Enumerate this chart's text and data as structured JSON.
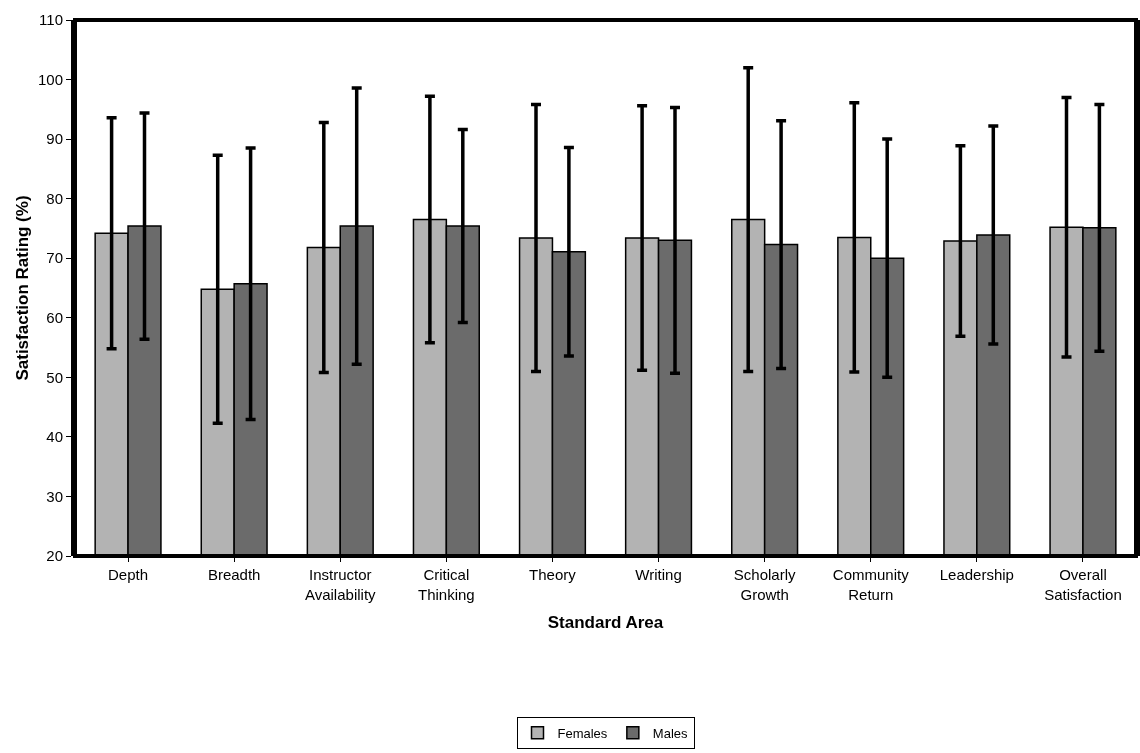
{
  "chart_data": {
    "type": "bar",
    "xlabel": "Standard Area",
    "ylabel": "Satisfaction Rating (%)",
    "categories": [
      "Depth",
      "Breadth",
      "Instructor Availability",
      "Critical Thinking",
      "Theory",
      "Writing",
      "Scholarly Growth",
      "Community Return",
      "Leadership",
      "Overall Satisfaction"
    ],
    "series": [
      {
        "name": "Females",
        "color": "#b3b3b3",
        "values": [
          74.2,
          64.8,
          71.8,
          76.5,
          73.4,
          73.4,
          76.5,
          73.5,
          72.9,
          75.2
        ],
        "errors": [
          19.4,
          22.5,
          21,
          20.7,
          22.4,
          22.2,
          25.5,
          22.6,
          16,
          21.8
        ]
      },
      {
        "name": "Males",
        "color": "#6b6b6b",
        "values": [
          75.4,
          65.7,
          75.4,
          75.4,
          71.1,
          73,
          72.3,
          70,
          73.9,
          75.1
        ],
        "errors": [
          19,
          22.8,
          23.2,
          16.2,
          17.5,
          22.3,
          20.8,
          20,
          18.3,
          20.7
        ]
      }
    ],
    "ylim": [
      20,
      110
    ],
    "yticks": [
      20,
      30,
      40,
      50,
      60,
      70,
      80,
      90,
      100,
      110
    ],
    "grid": false,
    "legend": "bottom"
  }
}
